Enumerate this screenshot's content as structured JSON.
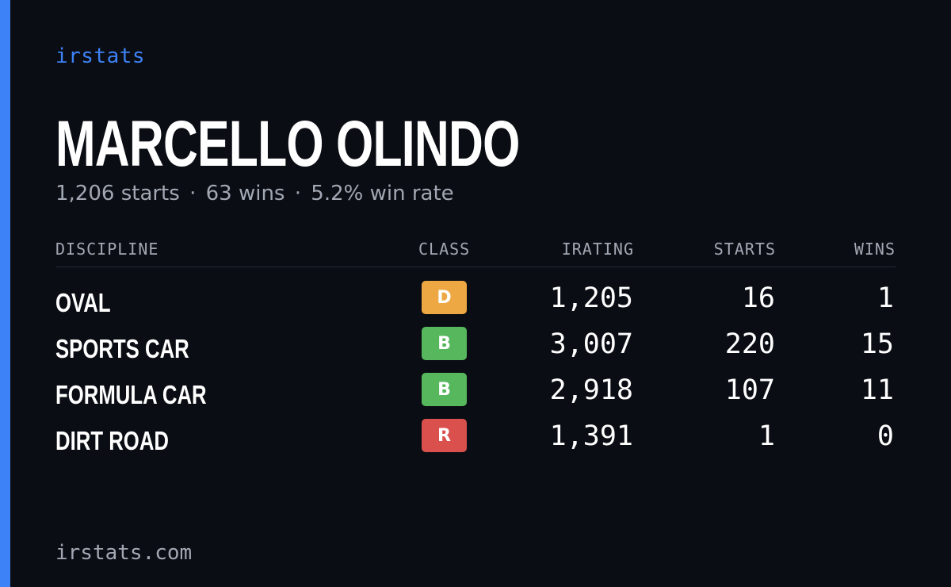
{
  "brand": "irstats",
  "driver": {
    "name": "MARCELLO OLINDO"
  },
  "summary": {
    "starts": "1,206 starts",
    "wins": "63 wins",
    "win_rate": "5.2% win rate",
    "separator": "·"
  },
  "table": {
    "headers": {
      "discipline": "DISCIPLINE",
      "class": "CLASS",
      "irating": "IRATING",
      "starts": "STARTS",
      "wins": "WINS"
    },
    "rows": [
      {
        "discipline": "OVAL",
        "class": "D",
        "irating": "1,205",
        "starts": "16",
        "wins": "1"
      },
      {
        "discipline": "SPORTS CAR",
        "class": "B",
        "irating": "3,007",
        "starts": "220",
        "wins": "15"
      },
      {
        "discipline": "FORMULA CAR",
        "class": "B",
        "irating": "2,918",
        "starts": "107",
        "wins": "11"
      },
      {
        "discipline": "DIRT ROAD",
        "class": "R",
        "irating": "1,391",
        "starts": "1",
        "wins": "0"
      }
    ]
  },
  "class_colors": {
    "D": "#eda843",
    "B": "#56b75d",
    "R": "#d9504d"
  },
  "accent_color": "#3d82f6",
  "footer": {
    "domain": "irstats.com"
  }
}
